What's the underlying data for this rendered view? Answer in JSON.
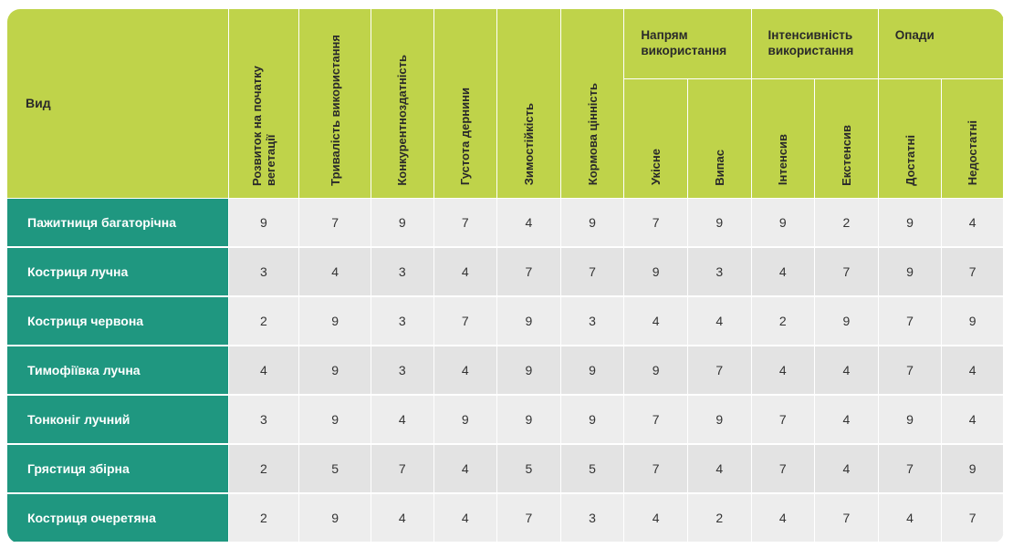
{
  "chart_data": {
    "type": "table",
    "header": {
      "vid": "Вид",
      "simple_columns": [
        "Розвиток на початку вегетації",
        "Тривалість використання",
        "Конкурентноздатність",
        "Густота дернини",
        "Зимостійкість",
        "Кормова цінність"
      ],
      "groups": [
        {
          "label": "Напрям використання",
          "subcolumns": [
            "Укісне",
            "Випас"
          ]
        },
        {
          "label": "Інтенсивність використання",
          "subcolumns": [
            "Інтенсив",
            "Екстенсив"
          ]
        },
        {
          "label": "Опади",
          "subcolumns": [
            "Достатні",
            "Недостатні"
          ]
        }
      ]
    },
    "rows": [
      {
        "name": "Пажитниця багаторічна",
        "values": [
          9,
          7,
          9,
          7,
          4,
          9,
          7,
          9,
          9,
          2,
          9,
          4
        ]
      },
      {
        "name": "Костриця лучна",
        "values": [
          3,
          4,
          3,
          4,
          7,
          7,
          9,
          3,
          4,
          7,
          9,
          7
        ]
      },
      {
        "name": "Костриця червона",
        "values": [
          2,
          9,
          3,
          7,
          9,
          3,
          4,
          4,
          2,
          9,
          7,
          9
        ]
      },
      {
        "name": "Тимофіївка лучна",
        "values": [
          4,
          9,
          3,
          4,
          9,
          9,
          9,
          7,
          4,
          4,
          7,
          4
        ]
      },
      {
        "name": "Тонконіг лучний",
        "values": [
          3,
          9,
          4,
          9,
          9,
          9,
          7,
          9,
          7,
          4,
          9,
          4
        ]
      },
      {
        "name": "Грястиця збірна",
        "values": [
          2,
          5,
          7,
          4,
          5,
          5,
          7,
          4,
          7,
          4,
          7,
          9
        ]
      },
      {
        "name": "Костриця очеретяна",
        "values": [
          2,
          9,
          4,
          4,
          7,
          3,
          4,
          2,
          4,
          7,
          4,
          7
        ]
      }
    ]
  },
  "colors": {
    "header_bg": "#bfd34a",
    "name_bg": "#1f9780",
    "row_odd": "#ededed",
    "row_even": "#e3e3e3"
  }
}
